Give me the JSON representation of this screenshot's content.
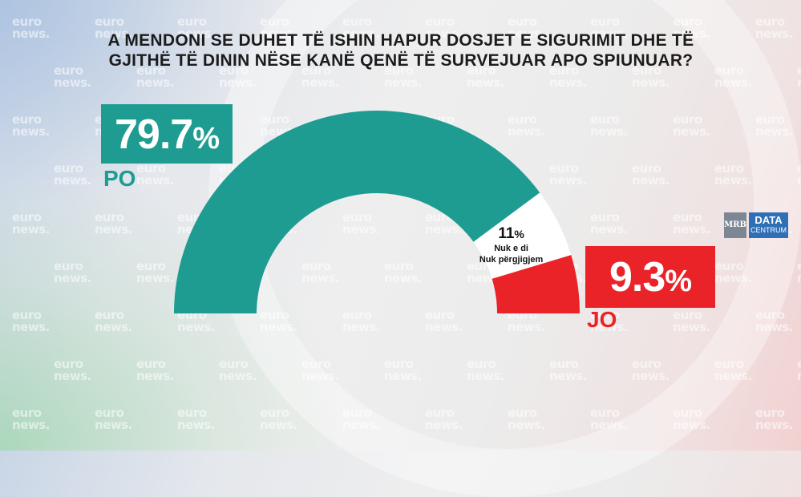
{
  "title_lines": [
    "A MENDONI SE DUHET TË ISHIN HAPUR DOSJET E SIGURIMIT DHE TË",
    "GJITHË TË DININ NËSE KANË QENË TË SURVEJUAR APO SPIUNUAR?"
  ],
  "watermark_text": [
    "euro",
    "news."
  ],
  "logo": {
    "left": "MRB",
    "top": "DATA",
    "bottom": "CENTRUM"
  },
  "colors": {
    "po": "#1f9c91",
    "jo": "#ea2328",
    "neutral": "#ffffff"
  },
  "chart_data": {
    "type": "pie",
    "shape": "half-donut gauge",
    "segments": [
      {
        "name": "PO",
        "value": 79.7,
        "color": "#1f9c91",
        "display_number": "79.7",
        "display_unit": "%"
      },
      {
        "name": "Nuk e di / Nuk përgjigjem",
        "value": 11,
        "color": "#ffffff",
        "display_number": "11",
        "display_unit": "%",
        "label_lines": [
          "Nuk e di",
          "Nuk përgjigjem"
        ]
      },
      {
        "name": "JO",
        "value": 9.3,
        "color": "#ea2328",
        "display_number": "9.3",
        "display_unit": "%"
      }
    ]
  }
}
